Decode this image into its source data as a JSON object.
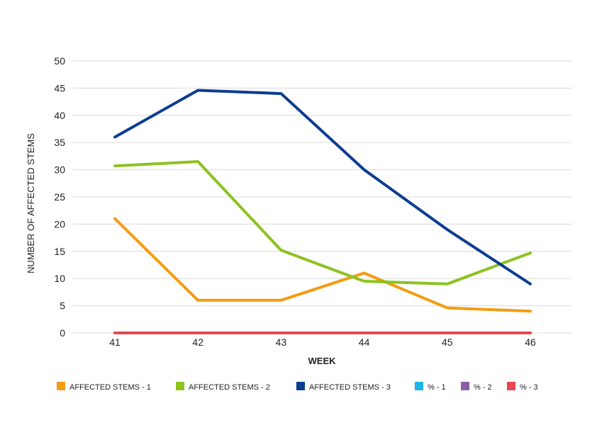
{
  "chart_data": {
    "type": "line",
    "title": "",
    "xlabel": "WEEK",
    "ylabel": "NUMBER OF AFFECTED STEMS",
    "categories": [
      "41",
      "42",
      "43",
      "44",
      "45",
      "46"
    ],
    "ylim": [
      0,
      50
    ],
    "yticks": [
      0,
      5,
      10,
      15,
      20,
      25,
      30,
      35,
      40,
      45,
      50
    ],
    "grid": true,
    "legend_position": "bottom",
    "series": [
      {
        "name": "AFFECTED STEMS - 1",
        "color": "#F39C12",
        "values": [
          21,
          6,
          6,
          11,
          4.6,
          4
        ]
      },
      {
        "name": "AFFECTED STEMS - 2",
        "color": "#8DC21F",
        "values": [
          30.7,
          31.5,
          15.2,
          9.5,
          9,
          14.7
        ]
      },
      {
        "name": "AFFECTED STEMS - 3",
        "color": "#0B3D91",
        "values": [
          36,
          44.6,
          44,
          30,
          19,
          9
        ]
      },
      {
        "name": "% - 1",
        "color": "#1EB6E6",
        "values": [
          0,
          0,
          0,
          0,
          0,
          0
        ]
      },
      {
        "name": "% - 2",
        "color": "#8E5BA6",
        "values": [
          0,
          0,
          0,
          0,
          0,
          0
        ]
      },
      {
        "name": "% - 3",
        "color": "#E8474F",
        "values": [
          0,
          0,
          0,
          0,
          0,
          0
        ]
      }
    ]
  }
}
